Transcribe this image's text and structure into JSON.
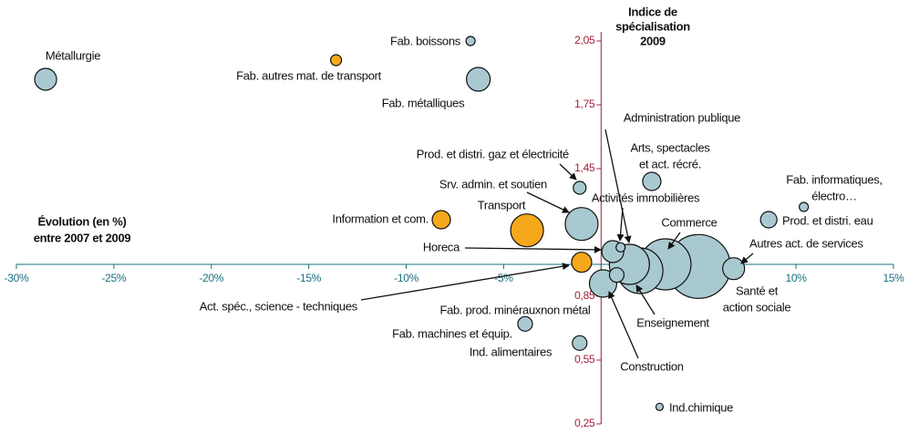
{
  "chart_data": {
    "type": "bubble",
    "xlabel": [
      "Évolution (en %)",
      "entre 2007 et 2009"
    ],
    "ylabel": [
      "Indice de",
      "spécialisation",
      "2009"
    ],
    "xlim": [
      -30,
      15
    ],
    "ylim": [
      0.25,
      2.05
    ],
    "xticks": [
      {
        "value": -30,
        "label": "-30%"
      },
      {
        "value": -25,
        "label": "-25%"
      },
      {
        "value": -20,
        "label": "-20%"
      },
      {
        "value": -15,
        "label": "-15%"
      },
      {
        "value": -10,
        "label": "-10%"
      },
      {
        "value": -5,
        "label": "-5%"
      },
      {
        "value": 0,
        "label": "0%"
      },
      {
        "value": 5,
        "label": "5%"
      },
      {
        "value": 10,
        "label": "10%"
      },
      {
        "value": 15,
        "label": "15%"
      }
    ],
    "yticks": [
      {
        "value": 0.25,
        "label": "0,25"
      },
      {
        "value": 0.55,
        "label": "0,55"
      },
      {
        "value": 0.85,
        "label": "0,85"
      },
      {
        "value": 1.45,
        "label": "1,45"
      },
      {
        "value": 1.75,
        "label": "1,75"
      },
      {
        "value": 2.05,
        "label": "2,05"
      }
    ],
    "labels": [
      "Métallurgie",
      "Fab. boissons",
      "Fab. autres mat. de transport",
      "Fab. métalliques",
      "Prod. et distri. gaz et électricité",
      "Srv. admin. et soutien",
      "Information et com.",
      "Transport",
      "Horeca",
      "Act. spéc., science - techniques",
      "Activités immobilières",
      "Fab. prod. minérauxnon métal",
      "Construction",
      "Administration publique",
      "Enseignement",
      "Commerce",
      [
        "Santé et",
        "action sociale"
      ],
      [
        "Arts, spectacles",
        "et act. récré."
      ],
      "Autres act. de services",
      [
        "Fab. informatiques,",
        "électro…"
      ],
      "Prod. et distri. eau",
      "Fab. machines et équip.",
      "Ind. alimentaires",
      "Ind.chimique"
    ],
    "x": [
      -28.5,
      -6.7,
      -13.6,
      -6.3,
      -1.1,
      -1.0,
      -8.2,
      -3.8,
      0.6,
      -1.0,
      1.0,
      0.8,
      0.1,
      1.45,
      2.0,
      3.3,
      5.0,
      2.6,
      6.8,
      10.4,
      8.6,
      -3.9,
      -1.1,
      3.0
    ],
    "values": [
      1.87,
      2.05,
      1.96,
      1.87,
      1.36,
      1.19,
      1.21,
      1.16,
      1.06,
      1.01,
      1.08,
      0.95,
      0.91,
      1.0,
      0.97,
      1.0,
      0.99,
      1.39,
      0.98,
      1.27,
      1.21,
      0.72,
      0.63,
      0.33
    ],
    "sizes": [
      12,
      5,
      6,
      13,
      7,
      18,
      10,
      18,
      12,
      11,
      5,
      8,
      15,
      22,
      25,
      28,
      35,
      10,
      12,
      5,
      9,
      8,
      8,
      4
    ],
    "colors": [
      "#a9c9d1",
      "#a9c9d1",
      "#f5a81c",
      "#a9c9d1",
      "#a9c9d1",
      "#a9c9d1",
      "#f5a81c",
      "#f5a81c",
      "#a9c9d1",
      "#f5a81c",
      "#a9c9d1",
      "#a9c9d1",
      "#a9c9d1",
      "#a9c9d1",
      "#a9c9d1",
      "#a9c9d1",
      "#a9c9d1",
      "#a9c9d1",
      "#a9c9d1",
      "#a9c9d1",
      "#a9c9d1",
      "#a9c9d1",
      "#a9c9d1",
      "#a9c9d1"
    ]
  }
}
